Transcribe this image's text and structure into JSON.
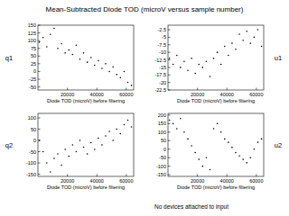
{
  "title": "Mean-Subtracted  Diode TOD  (microV versus sample number)",
  "note": "No devices attached to input",
  "chart_data": [
    {
      "type": "scatter",
      "title": "q1",
      "xlabel": "Diode TOD (microV) before filtering",
      "x": [
        1000,
        3500,
        6000,
        8500,
        11000,
        13500,
        16000,
        18500,
        21000,
        23500,
        26000,
        28500,
        31000,
        33500,
        36000,
        38500,
        41000,
        43500,
        46000,
        48500,
        51000,
        53500,
        56000,
        58500,
        61000,
        63500
      ],
      "values": [
        95,
        110,
        80,
        120,
        140,
        75,
        90,
        60,
        70,
        55,
        85,
        40,
        60,
        30,
        45,
        20,
        35,
        10,
        25,
        0,
        15,
        -10,
        -20,
        0,
        -35,
        -45
      ],
      "xlim": [
        0,
        65000
      ],
      "ylim": [
        -60,
        150
      ],
      "xticks": [
        20000,
        40000,
        60000
      ],
      "yticks": [
        -50,
        -25,
        0,
        25,
        50,
        75,
        100,
        125,
        150
      ],
      "color": "#000000",
      "marker": "dot"
    },
    {
      "type": "scatter",
      "title": "u1",
      "xlabel": "Diode TOD (microV) before filtering",
      "x": [
        1000,
        3500,
        6000,
        8500,
        11000,
        13500,
        16000,
        18500,
        21000,
        23500,
        26000,
        28500,
        31000,
        33500,
        36000,
        38500,
        41000,
        43500,
        46000,
        48500,
        51000,
        53500,
        56000,
        58500,
        61000,
        63500
      ],
      "values": [
        -12,
        -14,
        -11,
        -15,
        -13,
        -16,
        -12,
        -17,
        -14,
        -15,
        -13,
        -18,
        -12,
        -10,
        -14,
        -8,
        -11,
        -7,
        -9,
        -4,
        -6,
        -3,
        -7,
        -5,
        -2.5,
        -8
      ],
      "xlim": [
        0,
        65000
      ],
      "ylim": [
        -22.5,
        -1
      ],
      "xticks": [
        20000,
        40000,
        60000
      ],
      "yticks": [
        -22.5,
        -20,
        -17.5,
        -15,
        -12.5,
        -10,
        -7.5,
        -5,
        -2.5
      ],
      "color": "#000000",
      "marker": "dot"
    },
    {
      "type": "scatter",
      "title": "q2",
      "xlabel": "Diode TOD (microV) before filtering",
      "x": [
        1000,
        3500,
        6000,
        8500,
        11000,
        13500,
        16000,
        18500,
        21000,
        23500,
        26000,
        28500,
        31000,
        33500,
        36000,
        38500,
        41000,
        43500,
        46000,
        48500,
        51000,
        53500,
        56000,
        58500,
        61000,
        63500
      ],
      "values": [
        0,
        -50,
        -100,
        -140,
        -80,
        -60,
        -110,
        -40,
        -70,
        -20,
        -50,
        0,
        -30,
        -60,
        -10,
        -40,
        10,
        -20,
        20,
        40,
        0,
        50,
        30,
        70,
        90,
        60
      ],
      "xlim": [
        0,
        65000
      ],
      "ylim": [
        -160,
        120
      ],
      "xticks": [
        20000,
        40000,
        60000
      ],
      "yticks": [
        -150,
        -100,
        -50,
        0,
        50,
        100
      ],
      "color": "#000000",
      "marker": "dot"
    },
    {
      "type": "scatter",
      "title": "u2",
      "xlabel": "Diode TOD (microV) before filtering",
      "x": [
        1000,
        3500,
        6000,
        8500,
        11000,
        13500,
        16000,
        18500,
        21000,
        23500,
        26000,
        28500,
        31000,
        33500,
        36000,
        38500,
        41000,
        43500,
        46000,
        48500,
        51000,
        53500,
        56000,
        58500,
        61000,
        63500
      ],
      "values": [
        170,
        150,
        120,
        180,
        100,
        60,
        20,
        -20,
        -60,
        -100,
        -50,
        -120,
        120,
        150,
        100,
        60,
        40,
        10,
        -20,
        -40,
        -60,
        -80,
        -50,
        0,
        40,
        60
      ],
      "xlim": [
        0,
        65000
      ],
      "ylim": [
        -160,
        210
      ],
      "xticks": [
        20000,
        40000,
        60000
      ],
      "yticks": [
        -150,
        -100,
        -50,
        0,
        50,
        100,
        150,
        200
      ],
      "color": "#000000",
      "marker": "dot"
    }
  ]
}
